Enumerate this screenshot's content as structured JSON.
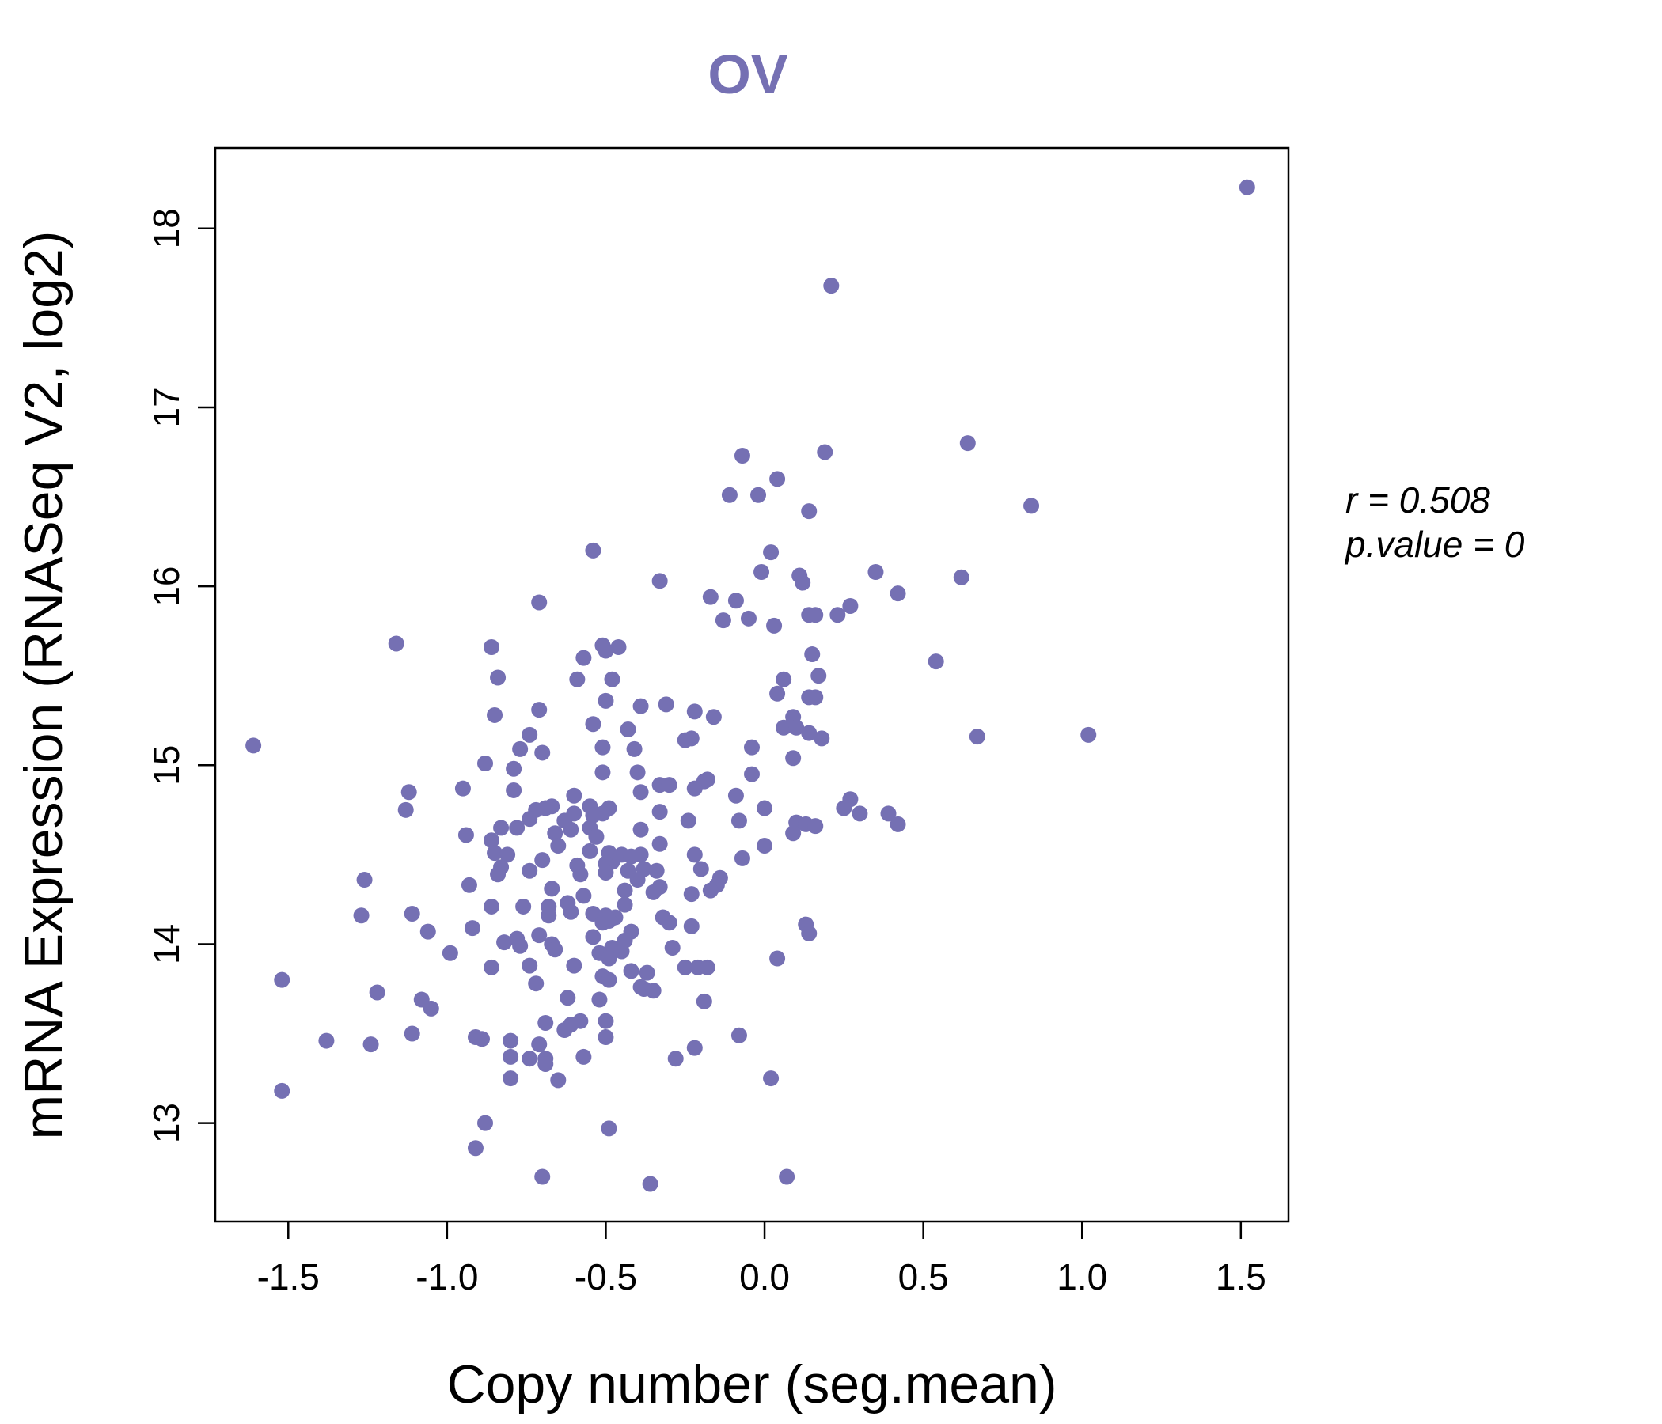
{
  "chart_data": {
    "type": "scatter",
    "title": "OV",
    "xlabel": "Copy number (seg.mean)",
    "ylabel": "mRNA Expression (RNASeq V2, log2)",
    "xlim": [
      -1.73,
      1.65
    ],
    "ylim": [
      12.45,
      18.45
    ],
    "xticks": [
      -1.5,
      -1.0,
      -0.5,
      0.0,
      0.5,
      1.0,
      1.5
    ],
    "xtick_labels": [
      "-1.5",
      "-1.0",
      "-0.5",
      "0.0",
      "0.5",
      "1.0",
      "1.5"
    ],
    "yticks": [
      13,
      14,
      15,
      16,
      17,
      18
    ],
    "ytick_labels": [
      "13",
      "14",
      "15",
      "16",
      "17",
      "18"
    ],
    "grid": false,
    "point_color": "#7570b3",
    "annotations": {
      "r_label": "r = 0.508",
      "p_label": "p.value = 0"
    },
    "points": [
      [
        1.52,
        18.23
      ],
      [
        0.21,
        17.68
      ],
      [
        0.64,
        16.8
      ],
      [
        0.19,
        16.75
      ],
      [
        -0.07,
        16.73
      ],
      [
        0.04,
        16.6
      ],
      [
        -0.11,
        16.51
      ],
      [
        -0.02,
        16.51
      ],
      [
        0.84,
        16.45
      ],
      [
        0.14,
        16.42
      ],
      [
        -0.54,
        16.2
      ],
      [
        0.02,
        16.19
      ],
      [
        -0.33,
        16.03
      ],
      [
        -0.01,
        16.08
      ],
      [
        0.11,
        16.06
      ],
      [
        0.35,
        16.08
      ],
      [
        0.62,
        16.05
      ],
      [
        0.12,
        16.02
      ],
      [
        -0.17,
        15.94
      ],
      [
        -0.09,
        15.92
      ],
      [
        0.42,
        15.96
      ],
      [
        -0.71,
        15.91
      ],
      [
        0.27,
        15.89
      ],
      [
        0.23,
        15.84
      ],
      [
        0.14,
        15.84
      ],
      [
        0.16,
        15.84
      ],
      [
        -0.05,
        15.82
      ],
      [
        -0.13,
        15.81
      ],
      [
        0.03,
        15.78
      ],
      [
        -1.16,
        15.68
      ],
      [
        -0.51,
        15.67
      ],
      [
        -0.46,
        15.66
      ],
      [
        -0.86,
        15.66
      ],
      [
        -0.5,
        15.64
      ],
      [
        -0.57,
        15.6
      ],
      [
        0.15,
        15.62
      ],
      [
        0.54,
        15.58
      ],
      [
        -0.84,
        15.49
      ],
      [
        -0.48,
        15.48
      ],
      [
        -0.59,
        15.48
      ],
      [
        0.17,
        15.5
      ],
      [
        0.06,
        15.48
      ],
      [
        0.04,
        15.4
      ],
      [
        0.14,
        15.38
      ],
      [
        0.16,
        15.38
      ],
      [
        -0.5,
        15.36
      ],
      [
        -0.39,
        15.33
      ],
      [
        -0.31,
        15.34
      ],
      [
        -0.22,
        15.3
      ],
      [
        -0.71,
        15.31
      ],
      [
        -0.16,
        15.27
      ],
      [
        -0.85,
        15.28
      ],
      [
        0.09,
        15.27
      ],
      [
        -0.54,
        15.23
      ],
      [
        -0.43,
        15.2
      ],
      [
        0.06,
        15.21
      ],
      [
        0.1,
        15.21
      ],
      [
        0.14,
        15.18
      ],
      [
        0.18,
        15.15
      ],
      [
        0.67,
        15.16
      ],
      [
        1.02,
        15.17
      ],
      [
        -0.23,
        15.15
      ],
      [
        -0.25,
        15.14
      ],
      [
        -1.61,
        15.11
      ],
      [
        -0.74,
        15.17
      ],
      [
        -0.77,
        15.09
      ],
      [
        -0.7,
        15.07
      ],
      [
        -0.51,
        15.1
      ],
      [
        -0.41,
        15.09
      ],
      [
        -0.04,
        15.1
      ],
      [
        0.09,
        15.04
      ],
      [
        -0.88,
        15.01
      ],
      [
        -0.79,
        14.98
      ],
      [
        -0.51,
        14.96
      ],
      [
        -0.4,
        14.96
      ],
      [
        -0.04,
        14.95
      ],
      [
        -0.19,
        14.91
      ],
      [
        -0.18,
        14.92
      ],
      [
        -0.33,
        14.89
      ],
      [
        -0.3,
        14.89
      ],
      [
        -0.22,
        14.87
      ],
      [
        -0.95,
        14.87
      ],
      [
        -1.12,
        14.85
      ],
      [
        -0.79,
        14.86
      ],
      [
        -0.39,
        14.85
      ],
      [
        -0.6,
        14.83
      ],
      [
        -0.09,
        14.83
      ],
      [
        0.27,
        14.81
      ],
      [
        -0.67,
        14.77
      ],
      [
        -0.49,
        14.76
      ],
      [
        -0.51,
        14.73
      ],
      [
        -0.69,
        14.76
      ],
      [
        -0.72,
        14.75
      ],
      [
        0.25,
        14.76
      ],
      [
        0.0,
        14.76
      ],
      [
        -1.13,
        14.75
      ],
      [
        -0.6,
        14.73
      ],
      [
        -0.55,
        14.77
      ],
      [
        -0.54,
        14.72
      ],
      [
        0.3,
        14.73
      ],
      [
        0.39,
        14.73
      ],
      [
        -0.74,
        14.7
      ],
      [
        -0.63,
        14.69
      ],
      [
        -0.24,
        14.69
      ],
      [
        -0.08,
        14.69
      ],
      [
        -0.33,
        14.74
      ],
      [
        0.1,
        14.68
      ],
      [
        0.13,
        14.67
      ],
      [
        0.16,
        14.66
      ],
      [
        0.42,
        14.67
      ],
      [
        -0.83,
        14.65
      ],
      [
        -0.78,
        14.65
      ],
      [
        -0.55,
        14.65
      ],
      [
        -0.39,
        14.64
      ],
      [
        0.09,
        14.62
      ],
      [
        -0.94,
        14.61
      ],
      [
        -0.66,
        14.62
      ],
      [
        -0.61,
        14.64
      ],
      [
        -0.53,
        14.6
      ],
      [
        -0.86,
        14.58
      ],
      [
        -0.33,
        14.56
      ],
      [
        -0.65,
        14.55
      ],
      [
        0.0,
        14.55
      ],
      [
        -0.55,
        14.52
      ],
      [
        -0.49,
        14.51
      ],
      [
        -0.45,
        14.5
      ],
      [
        -0.42,
        14.49
      ],
      [
        -0.39,
        14.5
      ],
      [
        -0.85,
        14.51
      ],
      [
        -0.81,
        14.5
      ],
      [
        -0.22,
        14.5
      ],
      [
        -0.07,
        14.48
      ],
      [
        -0.7,
        14.47
      ],
      [
        -0.48,
        14.46
      ],
      [
        -0.5,
        14.45
      ],
      [
        -0.59,
        14.44
      ],
      [
        -0.38,
        14.42
      ],
      [
        -0.43,
        14.41
      ],
      [
        -0.74,
        14.41
      ],
      [
        -0.83,
        14.43
      ],
      [
        -0.2,
        14.42
      ],
      [
        -0.84,
        14.39
      ],
      [
        -0.5,
        14.4
      ],
      [
        -0.58,
        14.39
      ],
      [
        -0.34,
        14.41
      ],
      [
        -0.14,
        14.37
      ],
      [
        -1.26,
        14.36
      ],
      [
        -0.4,
        14.36
      ],
      [
        -0.93,
        14.33
      ],
      [
        -0.67,
        14.31
      ],
      [
        -0.33,
        14.32
      ],
      [
        -0.15,
        14.33
      ],
      [
        -0.35,
        14.29
      ],
      [
        -0.44,
        14.3
      ],
      [
        -0.17,
        14.3
      ],
      [
        -0.23,
        14.28
      ],
      [
        -0.57,
        14.27
      ],
      [
        -0.62,
        14.23
      ],
      [
        -0.44,
        14.22
      ],
      [
        -0.86,
        14.21
      ],
      [
        -0.76,
        14.21
      ],
      [
        -0.68,
        14.21
      ],
      [
        -0.61,
        14.18
      ],
      [
        -0.68,
        14.16
      ],
      [
        -1.11,
        14.17
      ],
      [
        -1.27,
        14.16
      ],
      [
        -0.54,
        14.17
      ],
      [
        -0.5,
        14.16
      ],
      [
        -0.47,
        14.15
      ],
      [
        -0.3,
        14.12
      ],
      [
        -0.32,
        14.15
      ],
      [
        -0.23,
        14.1
      ],
      [
        0.13,
        14.11
      ],
      [
        0.14,
        14.06
      ],
      [
        -1.06,
        14.07
      ],
      [
        -0.92,
        14.09
      ],
      [
        -0.42,
        14.07
      ],
      [
        -0.51,
        14.12
      ],
      [
        -0.49,
        14.13
      ],
      [
        -0.71,
        14.05
      ],
      [
        -0.78,
        14.03
      ],
      [
        -0.82,
        14.01
      ],
      [
        -0.77,
        13.99
      ],
      [
        -0.67,
        14.0
      ],
      [
        -0.54,
        14.04
      ],
      [
        -0.44,
        14.02
      ],
      [
        -0.48,
        13.98
      ],
      [
        -0.66,
        13.97
      ],
      [
        -0.29,
        13.98
      ],
      [
        -0.99,
        13.95
      ],
      [
        -0.52,
        13.95
      ],
      [
        -0.49,
        13.92
      ],
      [
        0.04,
        13.92
      ],
      [
        -0.45,
        13.96
      ],
      [
        -0.86,
        13.87
      ],
      [
        -0.74,
        13.88
      ],
      [
        -0.6,
        13.88
      ],
      [
        -0.42,
        13.85
      ],
      [
        -0.37,
        13.84
      ],
      [
        -0.25,
        13.87
      ],
      [
        -0.21,
        13.87
      ],
      [
        -0.18,
        13.87
      ],
      [
        -0.51,
        13.82
      ],
      [
        -0.49,
        13.8
      ],
      [
        -0.72,
        13.78
      ],
      [
        -0.39,
        13.76
      ],
      [
        -0.38,
        13.75
      ],
      [
        -0.35,
        13.74
      ],
      [
        -1.52,
        13.8
      ],
      [
        -1.22,
        13.73
      ],
      [
        -1.08,
        13.69
      ],
      [
        -1.05,
        13.64
      ],
      [
        -0.62,
        13.7
      ],
      [
        -0.52,
        13.69
      ],
      [
        -0.19,
        13.68
      ],
      [
        -0.69,
        13.56
      ],
      [
        -0.58,
        13.57
      ],
      [
        -0.5,
        13.57
      ],
      [
        -0.61,
        13.55
      ],
      [
        -0.63,
        13.52
      ],
      [
        -1.11,
        13.5
      ],
      [
        -0.91,
        13.48
      ],
      [
        -0.89,
        13.47
      ],
      [
        -0.8,
        13.46
      ],
      [
        -0.71,
        13.44
      ],
      [
        -0.5,
        13.48
      ],
      [
        -0.08,
        13.49
      ],
      [
        -1.38,
        13.46
      ],
      [
        -1.24,
        13.44
      ],
      [
        -0.22,
        13.42
      ],
      [
        -0.8,
        13.37
      ],
      [
        -0.74,
        13.36
      ],
      [
        -0.69,
        13.36
      ],
      [
        -0.69,
        13.33
      ],
      [
        -0.57,
        13.37
      ],
      [
        -0.28,
        13.36
      ],
      [
        -0.8,
        13.25
      ],
      [
        -0.65,
        13.24
      ],
      [
        0.02,
        13.25
      ],
      [
        -1.52,
        13.18
      ],
      [
        -0.88,
        13.0
      ],
      [
        -0.49,
        12.97
      ],
      [
        -0.91,
        12.86
      ],
      [
        -0.7,
        12.7
      ],
      [
        0.07,
        12.7
      ],
      [
        -0.36,
        12.66
      ]
    ]
  }
}
